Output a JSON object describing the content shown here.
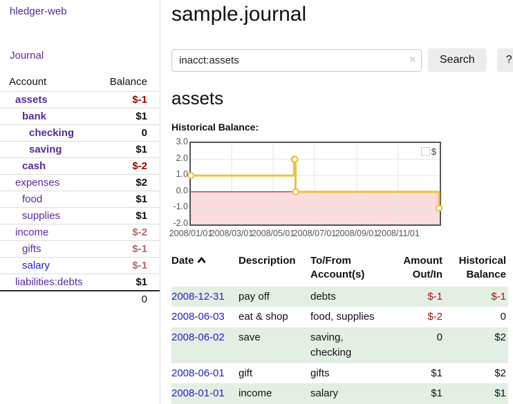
{
  "app": {
    "brand": "hledger-web",
    "nav_journal_label": "Journal"
  },
  "colors": {
    "accent_purple": "#5b2a9e",
    "link_blue": "#2222cc",
    "negative_red": "#a40000",
    "negative_soft_red": "#b56a6a",
    "table_negative_red": "#a11616",
    "row_green": "#e3efe3",
    "chart_line_gold": "#edc240",
    "chart_negative_fill": "#fcdcdc",
    "chart_zero_line": "#8b0000",
    "chart_grid": "#e6e6e6",
    "chart_border": "#545454"
  },
  "sidebar": {
    "header": {
      "account": "Account",
      "balance": "Balance"
    },
    "accounts": [
      {
        "name": "assets",
        "indent": 1,
        "balance": "$-1",
        "bold": true,
        "balance_style": "neg-strong"
      },
      {
        "name": "bank",
        "indent": 2,
        "balance": "$1",
        "bold": true,
        "balance_style": ""
      },
      {
        "name": "checking",
        "indent": 3,
        "balance": "0",
        "bold": true,
        "balance_style": ""
      },
      {
        "name": "saving",
        "indent": 3,
        "balance": "$1",
        "bold": true,
        "balance_style": ""
      },
      {
        "name": "cash",
        "indent": 2,
        "balance": "$-2",
        "bold": true,
        "balance_style": "neg-strong"
      },
      {
        "name": "expenses",
        "indent": 1,
        "balance": "$2",
        "bold": false,
        "balance_style": ""
      },
      {
        "name": "food",
        "indent": 2,
        "balance": "$1",
        "bold": false,
        "balance_style": ""
      },
      {
        "name": "supplies",
        "indent": 2,
        "balance": "$1",
        "bold": false,
        "balance_style": ""
      },
      {
        "name": "income",
        "indent": 1,
        "balance": "$-2",
        "bold": false,
        "balance_style": "neg-soft"
      },
      {
        "name": "gifts",
        "indent": 2,
        "balance": "$-1",
        "bold": false,
        "balance_style": "neg-soft"
      },
      {
        "name": "salary",
        "indent": 2,
        "balance": "$-1",
        "bold": false,
        "balance_style": "neg-soft",
        "link_color": "blue"
      },
      {
        "name": "liabilities:debts",
        "indent": 1,
        "balance": "$1",
        "bold": false,
        "balance_style": ""
      }
    ],
    "total": "0"
  },
  "header": {
    "title": "sample.journal"
  },
  "search": {
    "value": "inacct:assets",
    "clear_icon": "×",
    "button_label": "Search",
    "help_label": "?"
  },
  "account_page": {
    "heading": "assets",
    "chart_label": "Historical Balance:"
  },
  "chart_data": {
    "type": "line",
    "step": true,
    "title": "Historical Balance:",
    "legend": [
      "$"
    ],
    "legend_position": "top-right",
    "grid": true,
    "x_start": "2008-01-01",
    "x_end": "2009-01-01",
    "x_total_days": 366,
    "x_ticks": [
      "2008/01/01",
      "2008/03/01",
      "2008/05/01",
      "2008/07/01",
      "2008/09/01",
      "2008/11/01"
    ],
    "x_tick_dates": [
      "2008-01-01",
      "2008-03-01",
      "2008-05-01",
      "2008-07-01",
      "2008-09-01",
      "2008-11-01"
    ],
    "ylim": [
      -2.0,
      3.0
    ],
    "y_ticks": [
      3.0,
      2.0,
      1.0,
      0.0,
      -1.0,
      -2.0
    ],
    "negative_region_below": 0,
    "series": [
      {
        "name": "$",
        "points": [
          {
            "date": "2008-01-01",
            "value": 1.0
          },
          {
            "date": "2008-06-01",
            "value": 2.0
          },
          {
            "date": "2008-06-02",
            "value": 2.0
          },
          {
            "date": "2008-06-03",
            "value": 0.0
          },
          {
            "date": "2008-12-31",
            "value": -1.0
          }
        ]
      }
    ]
  },
  "register": {
    "columns": [
      {
        "label": "Date",
        "sortable": true
      },
      {
        "label": "Description"
      },
      {
        "label": "To/From Account(s)"
      },
      {
        "label": "Amount Out/In",
        "align": "right"
      },
      {
        "label": "Historical Balance",
        "align": "right"
      }
    ],
    "rows": [
      {
        "date": "2008-12-31",
        "description": "pay off",
        "accounts": "debts",
        "amount": "$-1",
        "amount_negative": true,
        "balance": "$-1",
        "balance_negative": true,
        "shaded": true
      },
      {
        "date": "2008-06-03",
        "description": "eat & shop",
        "accounts": "food, supplies",
        "amount": "$-2",
        "amount_negative": true,
        "balance": "0",
        "balance_negative": false,
        "shaded": false
      },
      {
        "date": "2008-06-02",
        "description": "save",
        "accounts": "saving, checking",
        "amount": "0",
        "amount_negative": false,
        "balance": "$2",
        "balance_negative": false,
        "shaded": true
      },
      {
        "date": "2008-06-01",
        "description": "gift",
        "accounts": "gifts",
        "amount": "$1",
        "amount_negative": false,
        "balance": "$2",
        "balance_negative": false,
        "shaded": false
      },
      {
        "date": "2008-01-01",
        "description": "income",
        "accounts": "salary",
        "amount": "$1",
        "amount_negative": false,
        "balance": "$1",
        "balance_negative": false,
        "shaded": true
      }
    ]
  }
}
